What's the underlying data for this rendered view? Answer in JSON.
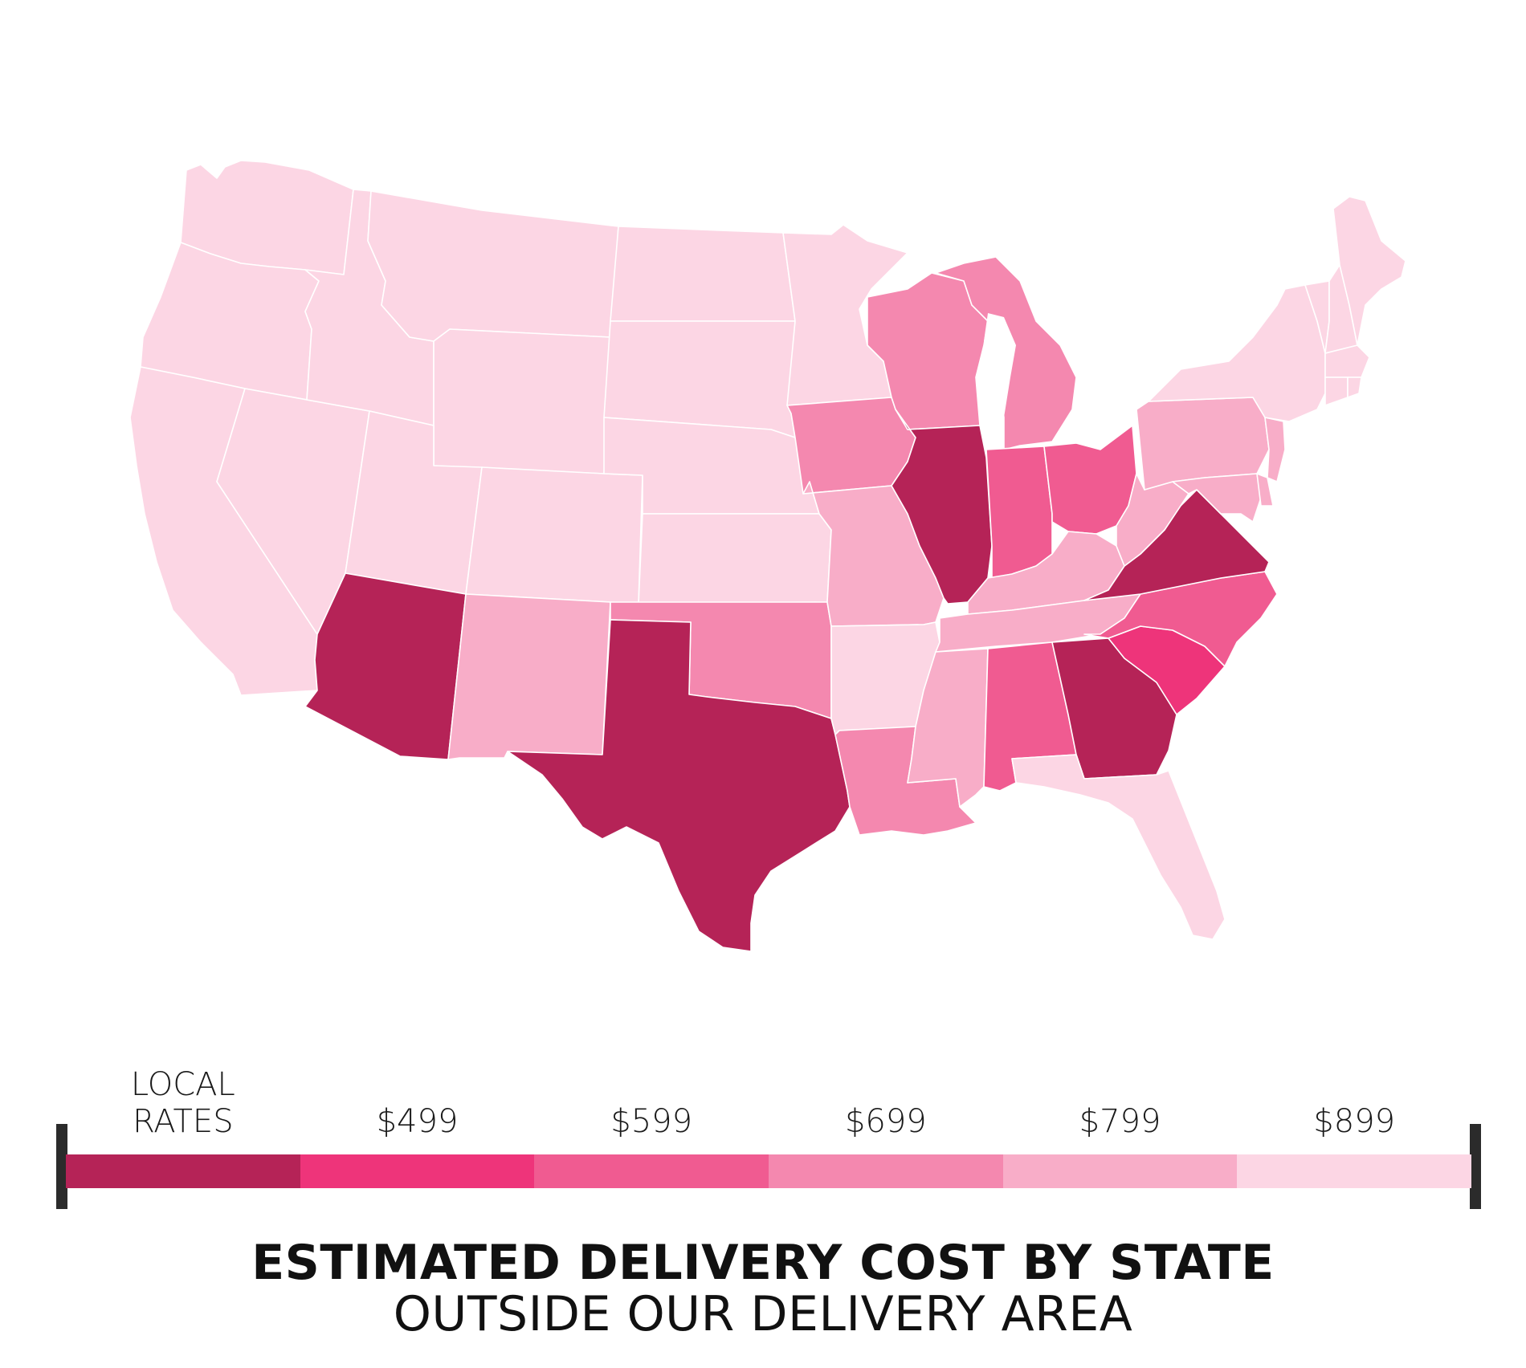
{
  "title": "ESTIMATED DELIVERY COST BY STATE",
  "subtitle": "OUTSIDE OUR DELIVERY AREA",
  "legend": {
    "tiers": [
      {
        "label": "LOCAL\nRATES",
        "color": "#b52357"
      },
      {
        "label": "$499",
        "color": "#ee347a"
      },
      {
        "label": "$599",
        "color": "#f05b91"
      },
      {
        "label": "$699",
        "color": "#f488af"
      },
      {
        "label": "$799",
        "color": "#f8adc8"
      },
      {
        "label": "$899",
        "color": "#fcd6e4"
      }
    ]
  },
  "map_data": {
    "colors": {
      "local": "#b52357",
      "t499": "#ee347a",
      "t599": "#f05b91",
      "t699": "#f488af",
      "t799": "#f8adc8",
      "t899": "#fcd6e4"
    },
    "states": {
      "WA": "t899",
      "OR": "t899",
      "CA": "t899",
      "NV": "t899",
      "ID": "t899",
      "MT": "t899",
      "WY": "t899",
      "UT": "t899",
      "CO": "t899",
      "ND": "t899",
      "SD": "t899",
      "NE": "t899",
      "KS": "t899",
      "MN": "t899",
      "AR": "t899",
      "FL": "t899",
      "NY": "t899",
      "VT": "t899",
      "NH": "t899",
      "ME": "t899",
      "MA": "t899",
      "CT": "t899",
      "RI": "t899",
      "NM": "t799",
      "MO": "t799",
      "KY": "t799",
      "TN": "t799",
      "MS": "t799",
      "PA": "t799",
      "WV": "t799",
      "MD": "t799",
      "DE": "t799",
      "NJ": "t799",
      "IA": "t699",
      "WI": "t699",
      "MI": "t699",
      "OK": "t699",
      "LA": "t699",
      "IN": "t599",
      "OH": "t599",
      "NC": "t599",
      "AL": "t599",
      "SC": "t499",
      "AZ": "local",
      "TX": "local",
      "IL": "local",
      "GA": "local",
      "VA": "local"
    }
  }
}
